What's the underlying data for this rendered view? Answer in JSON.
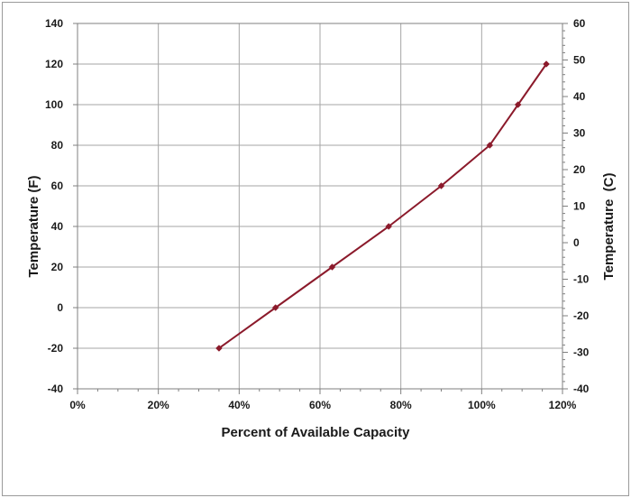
{
  "chart_data": {
    "type": "line",
    "title": "",
    "xlabel": "Percent of Available Capacity",
    "ylabel": "Temperature (F)",
    "y2label": "Temperature  (C)",
    "xlim": [
      0,
      120
    ],
    "ylim": [
      -40,
      140
    ],
    "y2lim": [
      -40,
      60
    ],
    "x_ticks": [
      "0%",
      "20%",
      "40%",
      "60%",
      "80%",
      "100%",
      "120%"
    ],
    "x_tick_values": [
      0,
      20,
      40,
      60,
      80,
      100,
      120
    ],
    "y_ticks": [
      "-40",
      "-20",
      "0",
      "20",
      "40",
      "60",
      "80",
      "100",
      "120",
      "140"
    ],
    "y_tick_values": [
      -40,
      -20,
      0,
      20,
      40,
      60,
      80,
      100,
      120,
      140
    ],
    "y2_ticks": [
      "-40",
      "-30",
      "-20",
      "-10",
      "0",
      "10",
      "20",
      "30",
      "40",
      "50",
      "60"
    ],
    "y2_tick_values": [
      -40,
      -30,
      -20,
      -10,
      0,
      10,
      20,
      30,
      40,
      50,
      60
    ],
    "grid": true,
    "series": [
      {
        "color": "#8b1a2b",
        "marker": "diamond",
        "x": [
          35,
          49,
          63,
          77,
          90,
          102,
          109,
          116
        ],
        "y": [
          -20,
          0,
          20,
          40,
          60,
          80,
          100,
          120
        ]
      }
    ]
  }
}
